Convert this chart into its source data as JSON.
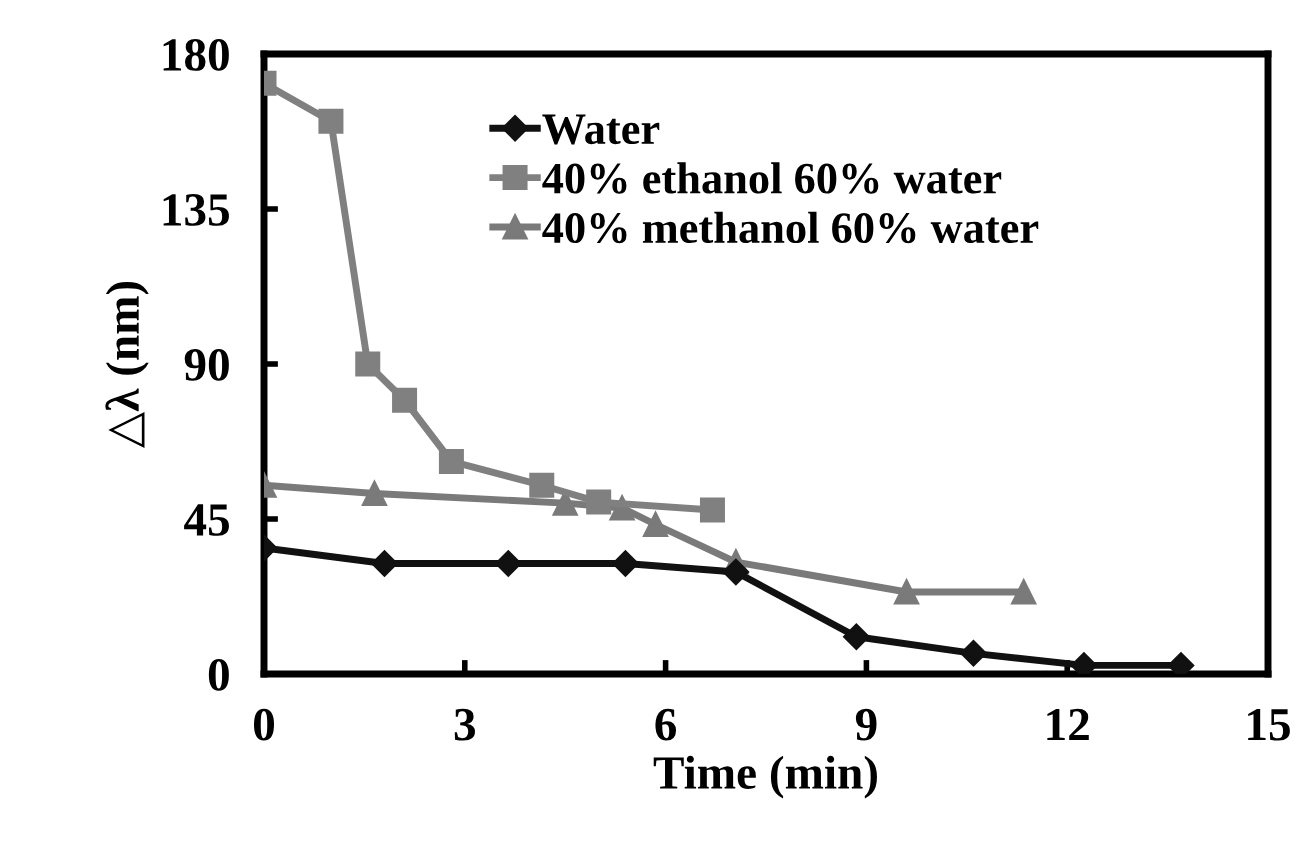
{
  "chart_data": {
    "type": "line",
    "xlabel": "Time (min)",
    "ylabel": "△λ (nm)",
    "xlim": [
      0,
      15
    ],
    "xticks": [
      0,
      3,
      6,
      9,
      12,
      15
    ],
    "ylim": [
      0,
      180
    ],
    "yticks": [
      0,
      45,
      90,
      135,
      180
    ],
    "grid": false,
    "legend": "top",
    "line_style": "solid",
    "series": [
      {
        "name": "Water",
        "color": "#111111",
        "marker": "diamond",
        "x": [
          0,
          1.8,
          3.65,
          5.4,
          7.05,
          8.85,
          10.6,
          12.25,
          13.7
        ],
        "values": [
          36.6,
          32.1,
          32.1,
          32.1,
          29.6,
          10.8,
          6.0,
          2.5,
          2.5
        ]
      },
      {
        "name": "40% ethanol 60% water",
        "color": "#808080",
        "marker": "square",
        "x": [
          0,
          1.0,
          1.55,
          2.1,
          2.8,
          4.15,
          5.0,
          6.7
        ],
        "values": [
          171.5,
          160.5,
          90,
          79.5,
          61.7,
          54.8,
          49.9,
          47.6
        ]
      },
      {
        "name": "40% methanol 60% water",
        "color": "#7a7a7a",
        "marker": "triangle",
        "x": [
          0,
          1.65,
          4.5,
          5.35,
          5.85,
          7.05,
          9.6,
          11.35
        ],
        "values": [
          54.8,
          52.4,
          49.6,
          48.2,
          43.4,
          32.5,
          23.8,
          23.8
        ]
      }
    ]
  }
}
